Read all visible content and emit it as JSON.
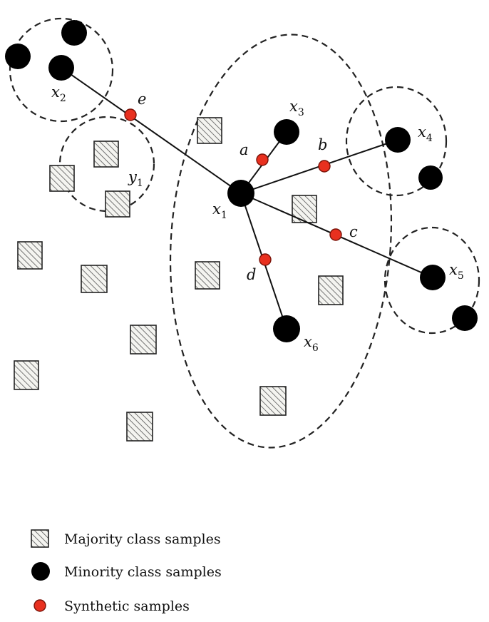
{
  "labels": {
    "x1": {
      "base": "x",
      "sub": "1"
    },
    "x2": {
      "base": "x",
      "sub": "2"
    },
    "x3": {
      "base": "x",
      "sub": "3"
    },
    "x4": {
      "base": "x",
      "sub": "4"
    },
    "x5": {
      "base": "x",
      "sub": "5"
    },
    "x6": {
      "base": "x",
      "sub": "6"
    },
    "y1": {
      "base": "y",
      "sub": "1"
    },
    "a": "a",
    "b": "b",
    "c": "c",
    "d": "d",
    "e": "e"
  },
  "legend": {
    "majority": "Majority class samples",
    "minority": "Minority class samples",
    "synthetic": "Synthetic samples"
  },
  "colors": {
    "minority": "#000000",
    "synthetic": "#e8301f",
    "majority_hatch": "#555555"
  }
}
